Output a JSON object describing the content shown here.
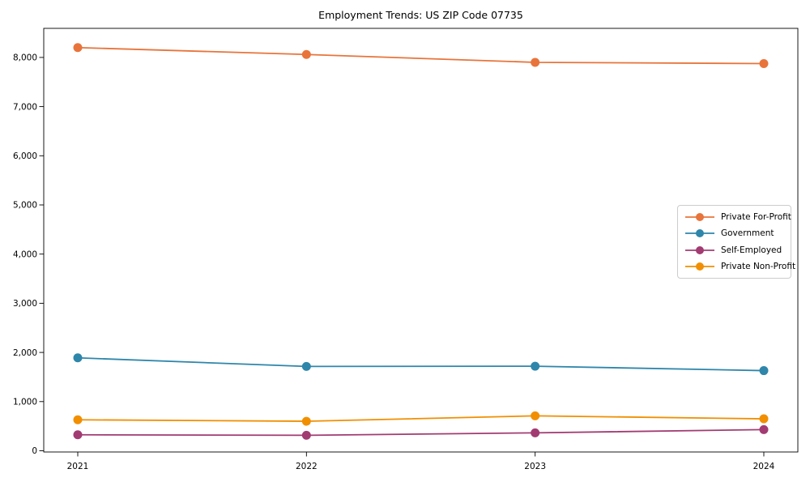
{
  "chart_data": {
    "type": "line",
    "title": "Employment Trends: US ZIP Code 07735",
    "x": [
      2021,
      2022,
      2023,
      2024
    ],
    "xticklabels": [
      "2021",
      "2022",
      "2023",
      "2024"
    ],
    "yticks": [
      0,
      1000,
      2000,
      3000,
      4000,
      5000,
      6000,
      7000,
      8000
    ],
    "yticklabels": [
      "0",
      "1,000",
      "2,000",
      "3,000",
      "4,000",
      "5,000",
      "6,000",
      "7,000",
      "8,000"
    ],
    "ylim": [
      0,
      8600
    ],
    "xlabel": "",
    "ylabel": "",
    "grid": false,
    "legend_position": "center right",
    "series": [
      {
        "name": "Private For-Profit",
        "color": "#E8743B",
        "values": [
          8200,
          8060,
          7900,
          7875
        ]
      },
      {
        "name": "Government",
        "color": "#2E86AB",
        "values": [
          1890,
          1715,
          1720,
          1630
        ]
      },
      {
        "name": "Self-Employed",
        "color": "#A23B72",
        "values": [
          325,
          315,
          365,
          430
        ]
      },
      {
        "name": "Private Non-Profit",
        "color": "#F18F01",
        "values": [
          630,
          600,
          710,
          650
        ]
      }
    ]
  }
}
